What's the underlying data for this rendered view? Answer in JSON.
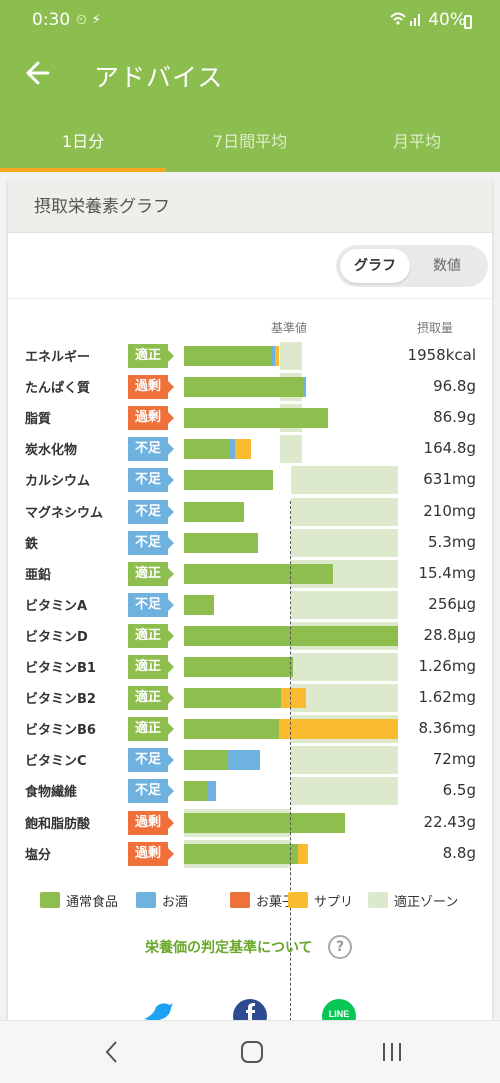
{
  "status": {
    "time": "0:30",
    "icons_text": "⏲ ⚡",
    "battery": "40%"
  },
  "appbar": {
    "title": "アドバイス",
    "back_icon": "arrow-left-icon"
  },
  "tabs": [
    {
      "label": "1日分",
      "active": true
    },
    {
      "label": "7日間平均",
      "active": false
    },
    {
      "label": "月平均",
      "active": false
    }
  ],
  "card": {
    "title": "摂取栄養素グラフ"
  },
  "toggle": {
    "graph": "グラフ",
    "number": "数値"
  },
  "headers": {
    "ref": "基準値",
    "intake": "摂取量"
  },
  "colors": {
    "food": "#8ebf4e",
    "alcohol": "#6fb2e0",
    "sweets": "#f0703a",
    "supplement": "#fbbb30",
    "zone": "#dde9cc",
    "ok": "#8ebf4e",
    "over": "#f0703a",
    "under": "#6fb2e0"
  },
  "nutrients": [
    {
      "name": "エネルギー",
      "status": "適正",
      "value": "1958kcal",
      "zone": [
        0.9,
        1.1
      ],
      "segments": [
        {
          "type": "food",
          "frac": 0.81
        },
        {
          "type": "alcohol",
          "frac": 0.04
        },
        {
          "type": "supplement",
          "frac": 0.04
        }
      ]
    },
    {
      "name": "たんぱく質",
      "status": "過剰",
      "value": "96.8g",
      "zone": [
        0.9,
        1.1
      ],
      "segments": [
        {
          "type": "food",
          "frac": 1.12
        },
        {
          "type": "alcohol",
          "frac": 0.02
        }
      ]
    },
    {
      "name": "脂質",
      "status": "過剰",
      "value": "86.9g",
      "zone": [
        0.9,
        1.1
      ],
      "segments": [
        {
          "type": "food",
          "frac": 1.35
        }
      ]
    },
    {
      "name": "炭水化物",
      "status": "不足",
      "value": "164.8g",
      "zone": [
        0.9,
        1.1
      ],
      "segments": [
        {
          "type": "food",
          "frac": 0.43
        },
        {
          "type": "alcohol",
          "frac": 0.05
        },
        {
          "type": "supplement",
          "frac": 0.15
        }
      ]
    },
    {
      "name": "カルシウム",
      "status": "不足",
      "value": "631mg",
      "zone": [
        1.0,
        2.0
      ],
      "segments": [
        {
          "type": "food",
          "frac": 0.83
        }
      ]
    },
    {
      "name": "マグネシウム",
      "status": "不足",
      "value": "210mg",
      "zone": [
        1.0,
        2.0
      ],
      "segments": [
        {
          "type": "food",
          "frac": 0.56
        }
      ]
    },
    {
      "name": "鉄",
      "status": "不足",
      "value": "5.3mg",
      "zone": [
        1.0,
        2.0
      ],
      "segments": [
        {
          "type": "food",
          "frac": 0.69
        }
      ]
    },
    {
      "name": "亜鉛",
      "status": "適正",
      "value": "15.4mg",
      "zone": [
        1.0,
        2.0
      ],
      "segments": [
        {
          "type": "food",
          "frac": 1.39
        }
      ]
    },
    {
      "name": "ビタミンA",
      "status": "不足",
      "value": "256μg",
      "zone": [
        1.0,
        2.0
      ],
      "segments": [
        {
          "type": "food",
          "frac": 0.28
        }
      ]
    },
    {
      "name": "ビタミンD",
      "status": "適正",
      "value": "28.8μg",
      "zone": [
        1.0,
        2.0
      ],
      "segments": [
        {
          "type": "food",
          "frac": 2.0
        }
      ]
    },
    {
      "name": "ビタミンB1",
      "status": "適正",
      "value": "1.26mg",
      "zone": [
        1.0,
        2.0
      ],
      "segments": [
        {
          "type": "food",
          "frac": 1.02
        }
      ]
    },
    {
      "name": "ビタミンB2",
      "status": "適正",
      "value": "1.62mg",
      "zone": [
        1.0,
        2.0
      ],
      "segments": [
        {
          "type": "food",
          "frac": 0.91
        },
        {
          "type": "supplement",
          "frac": 0.23
        }
      ]
    },
    {
      "name": "ビタミンB6",
      "status": "適正",
      "value": "8.36mg",
      "zone": [
        1.0,
        2.0
      ],
      "segments": [
        {
          "type": "food",
          "frac": 0.89
        },
        {
          "type": "supplement",
          "frac": 1.11
        }
      ]
    },
    {
      "name": "ビタミンC",
      "status": "不足",
      "value": "72mg",
      "zone": [
        1.0,
        2.0
      ],
      "segments": [
        {
          "type": "food",
          "frac": 0.4
        },
        {
          "type": "alcohol",
          "frac": 0.31
        }
      ]
    },
    {
      "name": "食物繊維",
      "status": "不足",
      "value": "6.5g",
      "zone": [
        1.0,
        2.0
      ],
      "segments": [
        {
          "type": "food",
          "frac": 0.22
        },
        {
          "type": "alcohol",
          "frac": 0.08
        }
      ]
    },
    {
      "name": "飽和脂肪酸",
      "status": "過剰",
      "value": "22.43g",
      "zone": [
        0.0,
        1.0
      ],
      "segments": [
        {
          "type": "food",
          "frac": 1.5
        }
      ]
    },
    {
      "name": "塩分",
      "status": "過剰",
      "value": "8.8g",
      "zone": [
        0.0,
        1.0
      ],
      "segments": [
        {
          "type": "food",
          "frac": 1.07
        },
        {
          "type": "supplement",
          "frac": 0.09
        }
      ]
    }
  ],
  "legend": [
    {
      "label": "通常食品",
      "type": "food"
    },
    {
      "label": "お酒",
      "type": "alcohol"
    },
    {
      "label": "お菓子",
      "type": "sweets"
    },
    {
      "label": "サプリ",
      "type": "supplement"
    },
    {
      "label": "適正ゾーン",
      "type": "zone"
    }
  ],
  "link": {
    "label": "栄養価の判定基準について"
  },
  "social": [
    {
      "name": "twitter",
      "color": "#1da1f2"
    },
    {
      "name": "facebook",
      "color": "#2d4b8e"
    },
    {
      "name": "line",
      "color": "#06c755",
      "text": "LINE"
    }
  ],
  "nav": {
    "back_icon": "back-chevron-icon",
    "home_icon": "home-circle-icon",
    "recents_icon": "recents-icon"
  }
}
